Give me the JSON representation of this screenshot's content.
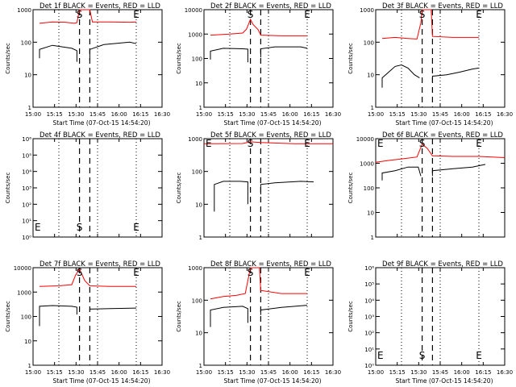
{
  "colors": {
    "events": "#000000",
    "lld": "#ff0000",
    "axis": "#000000"
  },
  "chart_data": [
    {
      "type": "line",
      "title": "Det 1f BLACK = Events, RED = LLD",
      "ylabel": "Counts/sec",
      "xlabel": "Start Time (07-Oct-15 14:54:20)",
      "yscale": "log",
      "ylim": [
        1,
        1000
      ],
      "yticks": [
        "1",
        "10",
        "100",
        "1000"
      ],
      "xticks": [
        "15:00",
        "15:15",
        "15:30",
        "15:45",
        "16:00",
        "16:15",
        "16:30"
      ],
      "xlim_min": [
        0,
        100
      ],
      "markers": [
        {
          "label": "S",
          "t": 36
        },
        {
          "label": "E",
          "t": 80
        }
      ],
      "dashed_lines": [
        36,
        44
      ],
      "dotted_lines": [
        20,
        50,
        80
      ],
      "series": [
        {
          "role": "events",
          "points": [
            [
              5,
              32
            ],
            [
              5,
              60
            ],
            [
              15,
              80
            ],
            [
              30,
              65
            ],
            [
              34,
              55
            ],
            [
              34,
              25
            ]
          ],
          "points2": [
            [
              44,
              28
            ],
            [
              44,
              60
            ],
            [
              55,
              85
            ],
            [
              75,
              100
            ],
            [
              80,
              90
            ]
          ]
        },
        {
          "role": "lld",
          "points": [
            [
              5,
              380
            ],
            [
              15,
              420
            ],
            [
              25,
              410
            ],
            [
              32,
              380
            ],
            [
              34,
              400
            ],
            [
              36,
              1000
            ],
            [
              44,
              1000
            ],
            [
              46,
              420
            ],
            [
              60,
              420
            ],
            [
              75,
              410
            ],
            [
              80,
              420
            ]
          ]
        }
      ]
    },
    {
      "type": "line",
      "title": "Det 2f BLACK = Events, RED = LLD",
      "ylabel": "Counts/sec",
      "xlabel": "Start Time (07-Oct-15 14:54:20)",
      "yscale": "log",
      "ylim": [
        1,
        10000
      ],
      "yticks": [
        "1",
        "10",
        "100",
        "1000",
        "10000"
      ],
      "xticks": [
        "15:00",
        "15:15",
        "15:30",
        "15:45",
        "16:00",
        "16:15",
        "16:30"
      ],
      "xlim_min": [
        0,
        100
      ],
      "markers": [
        {
          "label": "S",
          "t": 36
        },
        {
          "label": "E",
          "t": 80
        }
      ],
      "dashed_lines": [
        36,
        44
      ],
      "dotted_lines": [
        20,
        50,
        80
      ],
      "series": [
        {
          "role": "events",
          "points": [
            [
              5,
              90
            ],
            [
              5,
              200
            ],
            [
              15,
              260
            ],
            [
              30,
              250
            ],
            [
              34,
              240
            ],
            [
              34,
              70
            ]
          ],
          "points2": [
            [
              44,
              110
            ],
            [
              44,
              250
            ],
            [
              55,
              300
            ],
            [
              75,
              300
            ],
            [
              80,
              260
            ]
          ]
        },
        {
          "role": "lld",
          "points": [
            [
              5,
              900
            ],
            [
              20,
              1000
            ],
            [
              30,
              1100
            ],
            [
              33,
              1600
            ],
            [
              36,
              4000
            ],
            [
              38,
              2500
            ],
            [
              42,
              1500
            ],
            [
              44,
              900
            ],
            [
              60,
              850
            ],
            [
              80,
              850
            ]
          ]
        }
      ]
    },
    {
      "type": "line",
      "title": "Det 3f BLACK = Events, RED = LLD",
      "ylabel": "Counts/sec",
      "xlabel": "Start Time (07-Oct-15 14:54:20)",
      "yscale": "log",
      "ylim": [
        1,
        1000
      ],
      "yticks": [
        "1",
        "10",
        "100",
        "1000"
      ],
      "xticks": [
        "15:00",
        "15:15",
        "15:30",
        "15:45",
        "16:00",
        "16:15",
        "16:30"
      ],
      "xlim_min": [
        0,
        100
      ],
      "markers": [
        {
          "label": "S",
          "t": 36
        },
        {
          "label": "E",
          "t": 80
        }
      ],
      "dashed_lines": [
        36,
        44
      ],
      "dotted_lines": [
        20,
        50,
        80
      ],
      "series": [
        {
          "role": "events",
          "points": [
            [
              5,
              4
            ],
            [
              5,
              8
            ],
            [
              10,
              12
            ],
            [
              15,
              18
            ],
            [
              20,
              20
            ],
            [
              25,
              16
            ],
            [
              30,
              10
            ],
            [
              34,
              8
            ]
          ],
          "points2": [
            [
              44,
              6
            ],
            [
              44,
              9
            ],
            [
              55,
              10
            ],
            [
              65,
              12
            ],
            [
              75,
              15
            ],
            [
              80,
              16
            ]
          ]
        },
        {
          "role": "lld",
          "points": [
            [
              5,
              130
            ],
            [
              15,
              140
            ],
            [
              25,
              130
            ],
            [
              32,
              125
            ],
            [
              35,
              400
            ],
            [
              36,
              1000
            ],
            [
              43,
              1000
            ],
            [
              44,
              150
            ],
            [
              60,
              140
            ],
            [
              80,
              140
            ]
          ]
        }
      ]
    },
    {
      "type": "line",
      "title": "Det 4f BLACK = Events, RED = LLD",
      "ylabel": "Counts/sec",
      "xlabel": "",
      "yscale": "log",
      "ylim": [
        1,
        1000000
      ],
      "yticks": [
        "10⁰",
        "10¹",
        "10²",
        "10³",
        "10⁴",
        "10⁵",
        "10⁶"
      ],
      "xticks": [],
      "xlim_min": [
        0,
        100
      ],
      "markers": [
        {
          "label": "E",
          "t": 0
        },
        {
          "label": "S",
          "t": 36
        },
        {
          "label": "E",
          "t": 80
        }
      ],
      "dashed_lines": [
        36,
        44
      ],
      "dotted_lines": [
        20,
        50,
        80
      ],
      "series": []
    },
    {
      "type": "line",
      "title": "Det 5f BLACK = Events, RED = LLD",
      "ylabel": "Counts/sec",
      "xlabel": "",
      "yscale": "log",
      "ylim": [
        1,
        1000
      ],
      "yticks": [
        "1",
        "10",
        "100",
        "1000"
      ],
      "xticks": [],
      "xlim_min": [
        0,
        100
      ],
      "markers": [
        {
          "label": "E",
          "t": 0
        },
        {
          "label": "S",
          "t": 36
        },
        {
          "label": "E",
          "t": 80
        }
      ],
      "dashed_lines": [
        36,
        44
      ],
      "dotted_lines": [
        20,
        50,
        80
      ],
      "series": [
        {
          "role": "events",
          "points": [
            [
              8,
              6
            ],
            [
              8,
              40
            ],
            [
              15,
              50
            ],
            [
              28,
              50
            ],
            [
              34,
              48
            ],
            [
              34,
              10
            ]
          ],
          "points2": [
            [
              44,
              20
            ],
            [
              44,
              40
            ],
            [
              55,
              45
            ],
            [
              75,
              50
            ],
            [
              85,
              48
            ]
          ]
        },
        {
          "role": "lld",
          "points": [
            [
              0,
              700
            ],
            [
              30,
              710
            ],
            [
              36,
              800
            ],
            [
              44,
              760
            ],
            [
              70,
              700
            ],
            [
              100,
              700
            ]
          ]
        }
      ]
    },
    {
      "type": "line",
      "title": "Det 6f BLACK = Events, RED = LLD",
      "ylabel": "Counts/sec",
      "xlabel": "",
      "yscale": "log",
      "ylim": [
        1,
        10000
      ],
      "yticks": [
        "1",
        "10",
        "100",
        "1000",
        "10000"
      ],
      "xticks": [],
      "xlim_min": [
        0,
        100
      ],
      "markers": [
        {
          "label": "E",
          "t": 0
        },
        {
          "label": "S",
          "t": 36
        },
        {
          "label": "E",
          "t": 80
        }
      ],
      "dashed_lines": [
        36,
        44
      ],
      "dotted_lines": [
        20,
        50,
        80
      ],
      "series": [
        {
          "role": "events",
          "points": [
            [
              5,
              200
            ],
            [
              5,
              400
            ],
            [
              15,
              500
            ],
            [
              25,
              700
            ],
            [
              33,
              700
            ],
            [
              35,
              300
            ]
          ],
          "points2": [
            [
              44,
              300
            ],
            [
              44,
              500
            ],
            [
              60,
              600
            ],
            [
              75,
              700
            ],
            [
              85,
              900
            ]
          ]
        },
        {
          "role": "lld",
          "points": [
            [
              0,
              1100
            ],
            [
              10,
              1300
            ],
            [
              20,
              1500
            ],
            [
              32,
              1800
            ],
            [
              36,
              6000
            ],
            [
              40,
              4000
            ],
            [
              44,
              2000
            ],
            [
              60,
              1900
            ],
            [
              80,
              1900
            ],
            [
              100,
              1700
            ]
          ]
        }
      ]
    },
    {
      "type": "line",
      "title": "Det 7f BLACK = Events, RED = LLD",
      "ylabel": "Counts/sec",
      "xlabel": "Start Time (07-Oct-15 14:54:20)",
      "yscale": "log",
      "ylim": [
        1,
        10000
      ],
      "yticks": [
        "1",
        "10",
        "100",
        "1000",
        "10000"
      ],
      "xticks": [
        "15:00",
        "15:15",
        "15:30",
        "15:45",
        "16:00",
        "16:15",
        "16:30"
      ],
      "xlim_min": [
        0,
        100
      ],
      "markers": [
        {
          "label": "S",
          "t": 36
        },
        {
          "label": "E",
          "t": 80
        }
      ],
      "dashed_lines": [
        36,
        44
      ],
      "dotted_lines": [
        20,
        50,
        80
      ],
      "series": [
        {
          "role": "events",
          "points": [
            [
              5,
              40
            ],
            [
              5,
              260
            ],
            [
              15,
              280
            ],
            [
              30,
              260
            ],
            [
              34,
              240
            ],
            [
              34,
              120
            ]
          ],
          "points2": [
            [
              44,
              180
            ],
            [
              44,
              200
            ],
            [
              60,
              210
            ],
            [
              80,
              220
            ]
          ]
        },
        {
          "role": "lld",
          "points": [
            [
              5,
              1700
            ],
            [
              20,
              1800
            ],
            [
              30,
              2000
            ],
            [
              33,
              5000
            ],
            [
              36,
              9000
            ],
            [
              40,
              3000
            ],
            [
              44,
              1800
            ],
            [
              60,
              1700
            ],
            [
              80,
              1700
            ]
          ]
        }
      ]
    },
    {
      "type": "line",
      "title": "Det 8f BLACK = Events, RED = LLD",
      "ylabel": "Counts/sec",
      "xlabel": "Start Time (07-Oct-15 14:54:20)",
      "yscale": "log",
      "ylim": [
        1,
        1000
      ],
      "yticks": [
        "1",
        "10",
        "100",
        "1000"
      ],
      "xticks": [
        "15:00",
        "15:15",
        "15:30",
        "15:45",
        "16:00",
        "16:15",
        "16:30"
      ],
      "xlim_min": [
        0,
        100
      ],
      "markers": [
        {
          "label": "S",
          "t": 36
        },
        {
          "label": "E",
          "t": 80
        }
      ],
      "dashed_lines": [
        36,
        44
      ],
      "dotted_lines": [
        20,
        50,
        80
      ],
      "series": [
        {
          "role": "events",
          "points": [
            [
              5,
              15
            ],
            [
              5,
              50
            ],
            [
              15,
              60
            ],
            [
              30,
              65
            ],
            [
              34,
              55
            ],
            [
              34,
              20
            ]
          ],
          "points2": [
            [
              44,
              35
            ],
            [
              44,
              50
            ],
            [
              60,
              60
            ],
            [
              80,
              70
            ]
          ]
        },
        {
          "role": "lld",
          "points": [
            [
              5,
              110
            ],
            [
              15,
              130
            ],
            [
              25,
              140
            ],
            [
              32,
              160
            ],
            [
              36,
              1000
            ],
            [
              43,
              1000
            ],
            [
              44,
              200
            ],
            [
              60,
              160
            ],
            [
              80,
              160
            ]
          ]
        }
      ]
    },
    {
      "type": "line",
      "title": "Det 9f BLACK = Events, RED = LLD",
      "ylabel": "Counts/sec",
      "xlabel": "Start Time (07-Oct-15 14:54:20)",
      "yscale": "log",
      "ylim": [
        1,
        1000000
      ],
      "yticks": [
        "10⁰",
        "10¹",
        "10²",
        "10³",
        "10⁴",
        "10⁵",
        "10⁶"
      ],
      "xticks": [
        "15:00",
        "15:15",
        "15:30",
        "15:45",
        "16:00",
        "16:15",
        "16:30"
      ],
      "xlim_min": [
        0,
        100
      ],
      "markers": [
        {
          "label": "E",
          "t": 0
        },
        {
          "label": "S",
          "t": 36
        },
        {
          "label": "E",
          "t": 80
        }
      ],
      "dashed_lines": [
        36,
        44
      ],
      "dotted_lines": [
        20,
        50,
        80
      ],
      "series": []
    }
  ]
}
